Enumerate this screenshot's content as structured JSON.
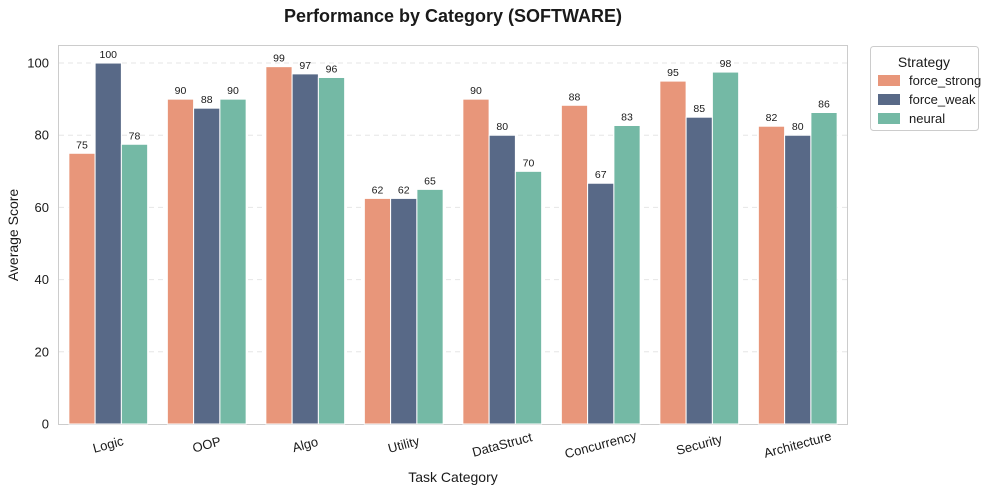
{
  "chart_data": {
    "type": "bar",
    "title": "Performance by Category (SOFTWARE)",
    "xlabel": "Task Category",
    "ylabel": "Average Score",
    "ylim": [
      0,
      105
    ],
    "yticks": [
      0,
      20,
      40,
      60,
      80,
      100
    ],
    "grid": true,
    "legend": {
      "title": "Strategy",
      "placement": "top-right-outside"
    },
    "categories": [
      "Logic",
      "OOP",
      "Algo",
      "Utility",
      "DataStruct",
      "Concurrency",
      "Security",
      "Architecture"
    ],
    "series": [
      {
        "name": "force_strong",
        "color": "#E8967A",
        "values": [
          75,
          90,
          99,
          62.5,
          90,
          88.3,
          95,
          82.5
        ],
        "labels": [
          "75",
          "90",
          "99",
          "62",
          "90",
          "88",
          "95",
          "82"
        ]
      },
      {
        "name": "force_weak",
        "color": "#586987",
        "values": [
          100,
          87.5,
          97,
          62.5,
          80,
          66.7,
          85,
          80
        ],
        "labels": [
          "100",
          "88",
          "97",
          "62",
          "80",
          "67",
          "85",
          "80"
        ]
      },
      {
        "name": "neural",
        "color": "#74B9A5",
        "values": [
          77.5,
          90,
          96,
          65,
          70,
          82.7,
          97.5,
          86.3
        ],
        "labels": [
          "78",
          "90",
          "96",
          "65",
          "70",
          "83",
          "98",
          "86"
        ]
      }
    ]
  }
}
